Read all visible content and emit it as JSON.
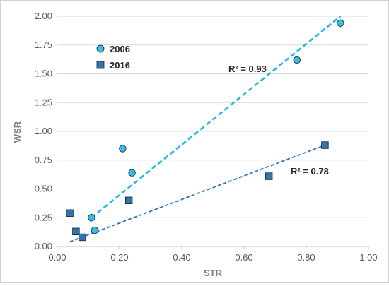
{
  "chart_data": {
    "type": "scatter",
    "xlabel": "STR",
    "ylabel": "WSR",
    "xlim": [
      0,
      1
    ],
    "ylim": [
      0,
      2
    ],
    "x_ticks": [
      "0.00",
      "0.20",
      "0.40",
      "0.60",
      "0.80",
      "1.00"
    ],
    "y_ticks": [
      "0.00",
      "0.25",
      "0.50",
      "0.75",
      "1.00",
      "1.25",
      "1.50",
      "1.75",
      "2.00"
    ],
    "grid": "horizontal",
    "legend_position": "top-left",
    "series": [
      {
        "name": "2006",
        "marker": "circle",
        "color": "#33bdea",
        "trendline_color": "#29b6e6",
        "r2_label": "R² = 0.93",
        "points": [
          {
            "x": 0.11,
            "y": 0.25
          },
          {
            "x": 0.12,
            "y": 0.14
          },
          {
            "x": 0.21,
            "y": 0.85
          },
          {
            "x": 0.24,
            "y": 0.64
          },
          {
            "x": 0.77,
            "y": 1.62
          },
          {
            "x": 0.91,
            "y": 1.94
          }
        ],
        "trendline": {
          "x1": 0.11,
          "y1": 0.25,
          "x2": 0.91,
          "y2": 2.0
        }
      },
      {
        "name": "2016",
        "marker": "square",
        "color": "#2e75b6",
        "trendline_color": "#2e75b6",
        "r2_label": "R² = 0.78",
        "points": [
          {
            "x": 0.04,
            "y": 0.29
          },
          {
            "x": 0.06,
            "y": 0.13
          },
          {
            "x": 0.08,
            "y": 0.08
          },
          {
            "x": 0.23,
            "y": 0.4
          },
          {
            "x": 0.68,
            "y": 0.61
          },
          {
            "x": 0.86,
            "y": 0.88
          }
        ],
        "trendline": {
          "x1": 0.04,
          "y1": 0.04,
          "x2": 0.86,
          "y2": 0.88
        }
      }
    ]
  }
}
